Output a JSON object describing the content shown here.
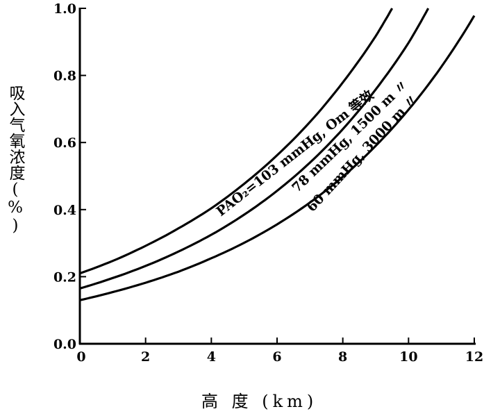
{
  "chart_data": {
    "type": "line",
    "title": "",
    "xlabel": "高 度 (km)",
    "ylabel": "吸入气氧浓度(%)",
    "xlim": [
      0,
      12
    ],
    "ylim": [
      0,
      1.0
    ],
    "xticks": [
      "0",
      "2",
      "4",
      "6",
      "8",
      "10",
      "12"
    ],
    "xtick_values": [
      0,
      2,
      4,
      6,
      8,
      10,
      12
    ],
    "yticks": [
      "0.0",
      "0.2",
      "0.4",
      "0.6",
      "0.8",
      "1.0"
    ],
    "ytick_values": [
      0,
      0.2,
      0.4,
      0.6,
      0.8,
      1.0
    ],
    "grid": false,
    "series": [
      {
        "name": "PAO₂=103 mmHg, Om 等效",
        "x": [
          0,
          1,
          2,
          3,
          4,
          5,
          6,
          7,
          8,
          9,
          9.5
        ],
        "y": [
          0.21,
          0.247,
          0.292,
          0.344,
          0.404,
          0.477,
          0.562,
          0.661,
          0.779,
          0.917,
          1.0
        ]
      },
      {
        "name": "78 mmHg, 1500 m 〃",
        "x": [
          0,
          1,
          2,
          3,
          4,
          5,
          6,
          7,
          8,
          9,
          10,
          10.6
        ],
        "y": [
          0.165,
          0.196,
          0.232,
          0.275,
          0.325,
          0.385,
          0.456,
          0.54,
          0.64,
          0.758,
          0.897,
          1.0
        ]
      },
      {
        "name": "60 mmHg, 3000 m 〃",
        "x": [
          0,
          1,
          2,
          3,
          4,
          5,
          6,
          7,
          8,
          9,
          10,
          11,
          12
        ],
        "y": [
          0.13,
          0.154,
          0.182,
          0.215,
          0.255,
          0.301,
          0.356,
          0.421,
          0.498,
          0.59,
          0.698,
          0.826,
          0.978
        ]
      }
    ]
  }
}
